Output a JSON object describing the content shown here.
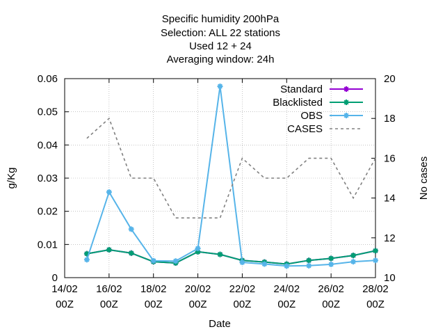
{
  "chart_data": {
    "type": "line",
    "title_lines": [
      "Specific humidity 200hPa",
      "Selection: ALL      22 stations",
      "Used  12  + 24",
      "Averaging window: 24h"
    ],
    "xlabel": "Date",
    "ylabel": "g/Kg",
    "y2label": "No cases",
    "x_ticks": [
      {
        "x": "2026-02-14T00:00",
        "line1": "14/02",
        "line2": "00Z"
      },
      {
        "x": "2026-02-16T00:00",
        "line1": "16/02",
        "line2": "00Z"
      },
      {
        "x": "2026-02-18T00:00",
        "line1": "18/02",
        "line2": "00Z"
      },
      {
        "x": "2026-02-20T00:00",
        "line1": "20/02",
        "line2": "00Z"
      },
      {
        "x": "2026-02-22T00:00",
        "line1": "22/02",
        "line2": "00Z"
      },
      {
        "x": "2026-02-24T00:00",
        "line1": "24/02",
        "line2": "00Z"
      },
      {
        "x": "2026-02-26T00:00",
        "line1": "26/02",
        "line2": "00Z"
      },
      {
        "x": "2026-02-28T00:00",
        "line1": "28/02",
        "line2": "00Z"
      }
    ],
    "xlim": [
      "2026-02-14T00:00",
      "2026-02-28T00:00"
    ],
    "ylim": [
      0,
      0.06
    ],
    "y_ticks": [
      {
        "v": 0,
        "label": "0"
      },
      {
        "v": 0.01,
        "label": "0.01"
      },
      {
        "v": 0.02,
        "label": "0.02"
      },
      {
        "v": 0.03,
        "label": "0.03"
      },
      {
        "v": 0.04,
        "label": "0.04"
      },
      {
        "v": 0.05,
        "label": "0.05"
      },
      {
        "v": 0.06,
        "label": "0.06"
      }
    ],
    "y2lim": [
      10,
      20
    ],
    "y2_ticks": [
      {
        "v": 10,
        "label": "10"
      },
      {
        "v": 12,
        "label": "12"
      },
      {
        "v": 14,
        "label": "14"
      },
      {
        "v": 16,
        "label": "16"
      },
      {
        "v": 18,
        "label": "18"
      },
      {
        "v": 20,
        "label": "20"
      }
    ],
    "grid": true,
    "legend_position": "top-right",
    "x": [
      "2026-02-15T00:00",
      "2026-02-16T00:00",
      "2026-02-17T00:00",
      "2026-02-18T00:00",
      "2026-02-19T00:00",
      "2026-02-20T00:00",
      "2026-02-21T00:00",
      "2026-02-22T00:00",
      "2026-02-23T00:00",
      "2026-02-24T00:00",
      "2026-02-25T00:00",
      "2026-02-26T00:00",
      "2026-02-27T00:00",
      "2026-02-28T00:00"
    ],
    "series": [
      {
        "name": "Standard",
        "color": "#9400d3",
        "axis": "y",
        "style": "line-points",
        "values": [
          0.0072,
          0.0084,
          0.0074,
          0.0048,
          0.0044,
          0.0078,
          0.007,
          0.0052,
          0.0047,
          0.0041,
          0.0052,
          0.0058,
          0.0067,
          0.0081
        ]
      },
      {
        "name": "Blacklisted",
        "color": "#009e73",
        "axis": "y",
        "style": "line-points",
        "values": [
          0.0072,
          0.0084,
          0.0074,
          0.0048,
          0.0044,
          0.0078,
          0.007,
          0.0052,
          0.0047,
          0.0041,
          0.0052,
          0.0058,
          0.0067,
          0.0081
        ]
      },
      {
        "name": "OBS",
        "color": "#56b4e9",
        "axis": "y",
        "style": "line-points",
        "values": [
          0.0054,
          0.0258,
          0.0146,
          0.0051,
          0.005,
          0.0088,
          0.0577,
          0.0046,
          0.0041,
          0.0035,
          0.0036,
          0.004,
          0.0048,
          0.0052
        ]
      },
      {
        "name": "CASES",
        "color": "#808080",
        "axis": "y2",
        "style": "dashed",
        "values": [
          17,
          18,
          15,
          15,
          13,
          13,
          13,
          16,
          15,
          15,
          16,
          16,
          14,
          16
        ]
      }
    ]
  }
}
